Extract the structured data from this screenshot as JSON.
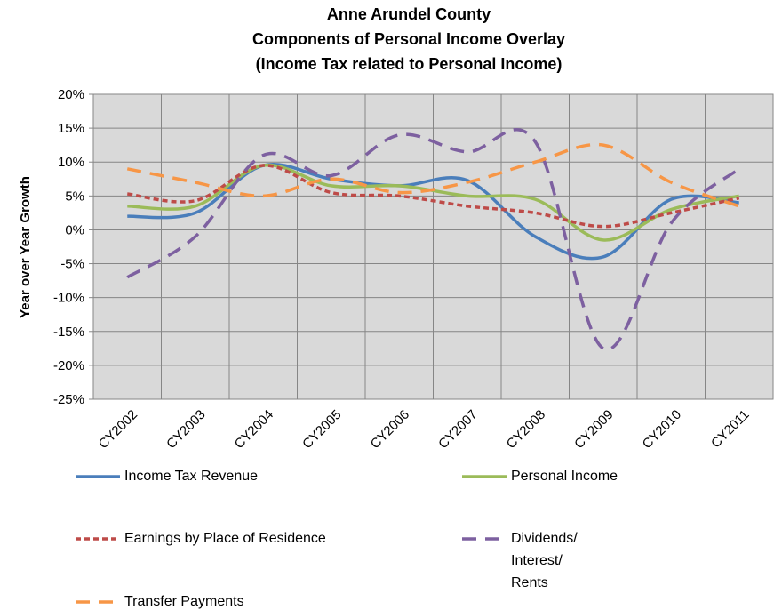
{
  "chart_data": {
    "type": "line",
    "title": [
      "Anne Arundel County",
      "Components of Personal Income Overlay",
      "(Income Tax related to Personal Income)"
    ],
    "y_label": "Year over Year Growth",
    "categories": [
      "CY2002",
      "CY2003",
      "CY2004",
      "CY2005",
      "CY2006",
      "CY2007",
      "CY2008",
      "CY2009",
      "CY2010",
      "CY2011"
    ],
    "series": [
      {
        "name": "Income Tax Revenue",
        "color": "#4a7ebb",
        "dash": "solid",
        "values": [
          2,
          2.5,
          9.5,
          7.5,
          6.5,
          7.3,
          -1,
          -4,
          4.5,
          4
        ]
      },
      {
        "name": "Personal Income",
        "color": "#9bbb59",
        "dash": "solid",
        "values": [
          3.5,
          3.5,
          9.5,
          6.5,
          6.5,
          5,
          4.5,
          -1.5,
          3,
          5
        ]
      },
      {
        "name": "Earnings by Place of Residence",
        "color": "#be4b48",
        "dash": "short",
        "values": [
          5.3,
          4.3,
          9.5,
          5.5,
          5,
          3.5,
          2.5,
          0.5,
          2.5,
          4.7
        ]
      },
      {
        "name": "Dividends/ Interest/ Rents",
        "color": "#7d60a0",
        "dash": "long",
        "values": [
          -7,
          -1,
          11,
          8,
          14,
          11.5,
          13,
          -17.5,
          1,
          9
        ]
      },
      {
        "name": "Transfer Payments",
        "color": "#f79646",
        "dash": "long",
        "values": [
          9,
          7,
          5,
          7.5,
          5.5,
          7,
          10,
          12.5,
          7,
          3.5
        ]
      }
    ],
    "ylim": [
      -25,
      20
    ],
    "yticks": [
      {
        "value": -25,
        "label": "-25%"
      },
      {
        "value": -20,
        "label": "-20%"
      },
      {
        "value": -15,
        "label": "-15%"
      },
      {
        "value": -10,
        "label": "-10%"
      },
      {
        "value": -5,
        "label": "-5%"
      },
      {
        "value": 0,
        "label": "0%"
      },
      {
        "value": 5,
        "label": "5%"
      },
      {
        "value": 10,
        "label": "10%"
      },
      {
        "value": 15,
        "label": "15%"
      },
      {
        "value": 20,
        "label": "20%"
      }
    ],
    "grid": true
  }
}
